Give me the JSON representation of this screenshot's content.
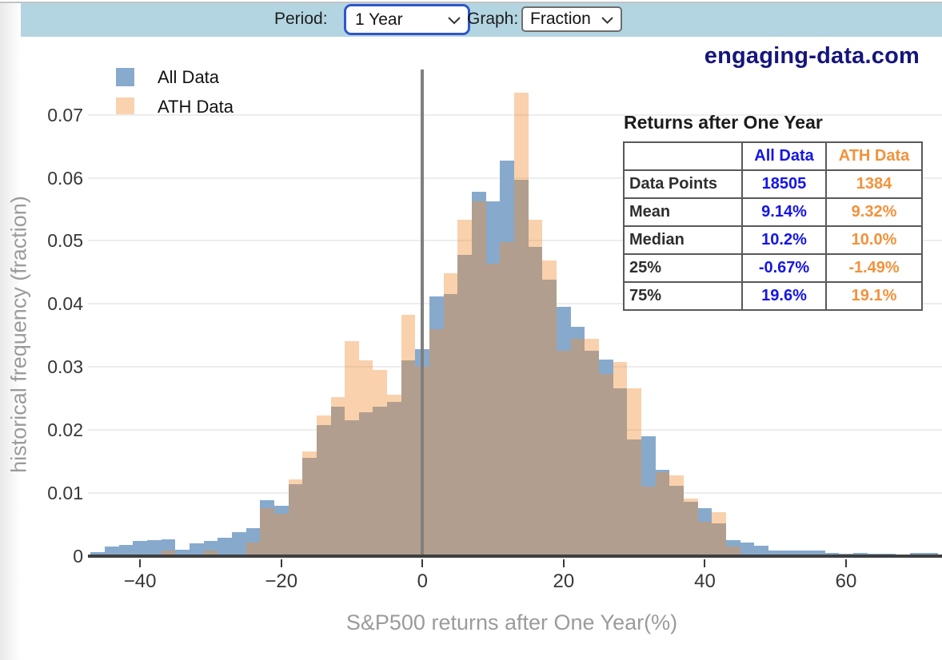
{
  "toolbar": {
    "period_label": "Period:",
    "period_value": "1 Year",
    "graph_label": "Graph:",
    "graph_value": "Fraction"
  },
  "branding": "engaging-data.com",
  "legend": [
    {
      "label": "All Data",
      "color": "#88abcd"
    },
    {
      "label": "ATH Data",
      "color": "#f9d2ae"
    }
  ],
  "stats_table": {
    "title": "Returns after One Year",
    "columns": [
      "",
      "All Data",
      "ATH Data"
    ],
    "rows": [
      {
        "label": "Data Points",
        "all": "18505",
        "ath": "1384"
      },
      {
        "label": "Mean",
        "all": "9.14%",
        "ath": "9.32%"
      },
      {
        "label": "Median",
        "all": "10.2%",
        "ath": "10.0%"
      },
      {
        "label": "25%",
        "all": "-0.67%",
        "ath": "-1.49%"
      },
      {
        "label": "75%",
        "all": "19.6%",
        "ath": "19.1%"
      }
    ],
    "all_color": "#1515e6",
    "ath_color": "#f2923c"
  },
  "chart_data": {
    "type": "bar",
    "title": "",
    "xlabel": "S&P500 returns after One Year(%)",
    "ylabel": "historical frequency (fraction)",
    "xlim": [
      -47.5,
      73.5
    ],
    "ylim": [
      0,
      0.075
    ],
    "grid": true,
    "legend_position": "top-left",
    "bin_width": 2,
    "x_ticks": [
      -40,
      -20,
      0,
      20,
      40,
      60
    ],
    "x_tick_labels": [
      "−40",
      "−20",
      "0",
      "20",
      "40",
      "60"
    ],
    "y_ticks": [
      0,
      0.01,
      0.02,
      0.03,
      0.04,
      0.05,
      0.06,
      0.07
    ],
    "y_tick_labels": [
      "0",
      "0.01",
      "0.02",
      "0.03",
      "0.04",
      "0.05",
      "0.06",
      "0.07"
    ],
    "zero_line_x": 0,
    "bin_centers": [
      -46,
      -44,
      -42,
      -40,
      -38,
      -36,
      -34,
      -32,
      -30,
      -28,
      -26,
      -24,
      -22,
      -20,
      -18,
      -16,
      -14,
      -12,
      -10,
      -8,
      -6,
      -4,
      -2,
      0,
      2,
      4,
      6,
      8,
      10,
      12,
      14,
      16,
      18,
      20,
      22,
      24,
      26,
      28,
      30,
      32,
      34,
      36,
      38,
      40,
      42,
      44,
      46,
      48,
      50,
      52,
      54,
      56,
      58,
      60,
      62,
      64,
      66,
      68,
      70,
      72
    ],
    "series": [
      {
        "name": "All Data",
        "color": "#87aacc",
        "values": [
          0.0006,
          0.0014,
          0.0017,
          0.0024,
          0.0025,
          0.0026,
          0.001,
          0.002,
          0.0023,
          0.0028,
          0.0037,
          0.0044,
          0.0088,
          0.0079,
          0.0113,
          0.0156,
          0.0208,
          0.0237,
          0.0215,
          0.0228,
          0.0237,
          0.0244,
          0.031,
          0.0328,
          0.0412,
          0.0416,
          0.0477,
          0.0578,
          0.0563,
          0.0627,
          0.0597,
          0.049,
          0.0438,
          0.0395,
          0.0363,
          0.0325,
          0.0311,
          0.0266,
          0.0185,
          0.019,
          0.0137,
          0.0111,
          0.0086,
          0.0076,
          0.0052,
          0.0025,
          0.0021,
          0.0016,
          0.0008,
          0.0008,
          0.0008,
          0.0008,
          0.0005,
          0.0003,
          0.0005,
          0.0003,
          0.0003,
          0.0001,
          0.0004,
          0.0004
        ]
      },
      {
        "name": "ATH Data",
        "color": "rgba(240,140,50,0.4)",
        "values": [
          0,
          0,
          0,
          0,
          0,
          0.0008,
          0,
          0,
          0.0008,
          0,
          0,
          0.0021,
          0.0075,
          0.0066,
          0.0121,
          0.0165,
          0.0223,
          0.0252,
          0.034,
          0.031,
          0.0295,
          0.0255,
          0.0383,
          0.03,
          0.036,
          0.0448,
          0.0534,
          0.0562,
          0.0464,
          0.0498,
          0.0735,
          0.0533,
          0.0469,
          0.0325,
          0.0344,
          0.0344,
          0.0288,
          0.0308,
          0.0266,
          0.011,
          0.0133,
          0.0128,
          0.0091,
          0.0054,
          0.0069,
          0.0015,
          0,
          0,
          0,
          0,
          0,
          0,
          0,
          0,
          0,
          0,
          0,
          0,
          0,
          0
        ]
      }
    ]
  }
}
